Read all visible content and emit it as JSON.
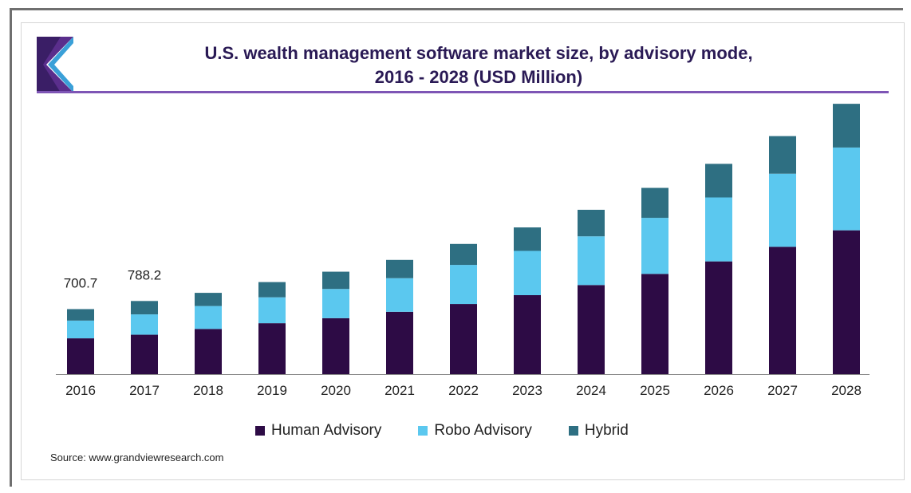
{
  "title_line1": "U.S. wealth management software market size, by advisory mode,",
  "title_line2": "2016 - 2028 (USD Million)",
  "source": "Source: www.grandviewresearch.com",
  "colors": {
    "human": "#2d0b45",
    "robo": "#5bc8ef",
    "hybrid": "#2e6f82",
    "title": "#2a1a55",
    "rule": "#7e55b5"
  },
  "chart_data": {
    "type": "bar",
    "stacked": true,
    "title": "U.S. wealth management software market size, by advisory mode, 2016 - 2028 (USD Million)",
    "xlabel": "",
    "ylabel": "",
    "categories": [
      "2016",
      "2017",
      "2018",
      "2019",
      "2020",
      "2021",
      "2022",
      "2023",
      "2024",
      "2025",
      "2026",
      "2027",
      "2028"
    ],
    "series": [
      {
        "name": "Human Advisory",
        "values": [
          386,
          425,
          487,
          549,
          603,
          672,
          756,
          851,
          960,
          1080,
          1215,
          1372,
          1550
        ]
      },
      {
        "name": "Robo Advisory",
        "values": [
          191,
          219,
          247,
          279,
          315,
          362,
          421,
          477,
          525,
          604,
          689,
          788,
          892
        ]
      },
      {
        "name": "Hybrid",
        "values": [
          123.7,
          144.2,
          142,
          164,
          186,
          197,
          226,
          253,
          286,
          323,
          362,
          405,
          471
        ]
      }
    ],
    "data_labels": [
      {
        "category": "2016",
        "text": "700.7"
      },
      {
        "category": "2017",
        "text": "788.2"
      }
    ],
    "ylim": [
      0,
      3000
    ],
    "grid": false,
    "legend_position": "bottom"
  }
}
